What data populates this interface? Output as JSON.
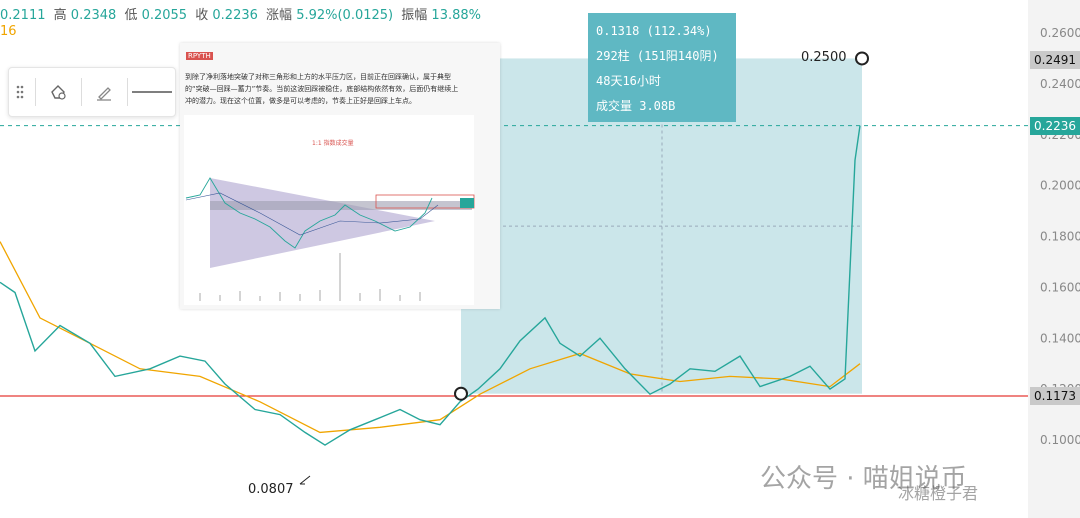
{
  "header": {
    "open_value": "0.2111",
    "high_label": "高",
    "high_value": "0.2348",
    "low_label": "低",
    "low_value": "0.2055",
    "close_label": "收",
    "close_value": "0.2236",
    "change_label": "涨幅",
    "change_value": "5.92%(0.0125)",
    "amplitude_label": "振幅",
    "amplitude_value": "13.88%",
    "ma_fragment": "16"
  },
  "toolbar": {
    "icons": [
      "drag-handle-icon",
      "lock-shape-icon",
      "pencil-icon",
      "line-style-icon"
    ]
  },
  "measure_tooltip": {
    "line1": "0.1318 (112.34%)",
    "line2": "292柱 (151阳140阴)",
    "line3": "48天16小时",
    "line4": "成交量 3.08B"
  },
  "markers": {
    "high_label": "0.2500",
    "low_label": "0.0807"
  },
  "price_tags": {
    "current": "0.2236",
    "high": "0.2491",
    "support": "0.1173"
  },
  "inset": {
    "tag": "RPYTH",
    "text_line1": "到除了净利落地突破了对称三角形和上方的水平压力区，目前正在回踩确认，属于典型",
    "text_line2": "的“突破—回踩—蓄力”节奏。当前这波回踩被稳住，底部结构依然有效，后面仍有继续上",
    "text_line3": "冲的潜力。现在这个位置，做多是可以考虑的，节奏上正好是回踩上车点。",
    "chart_caption": "1:1 指数成交量"
  },
  "watermark": {
    "main": "公众号 · 喵姐说币",
    "sub": "冰糖橙子君"
  },
  "colors": {
    "up": "#26a69a",
    "ma": "#f0a500",
    "support_line": "#e53935",
    "measure_box": "#c5e3e8",
    "tooltip_bg": "#5fb8c3",
    "axis_text": "#888888"
  },
  "chart_data": {
    "type": "line",
    "title": "",
    "xlabel": "",
    "ylabel": "",
    "ylim": [
      0.095,
      0.262
    ],
    "y_ticks": [
      0.26,
      0.24,
      0.22,
      0.2,
      0.18,
      0.16,
      0.14,
      0.12,
      0.1
    ],
    "y_tick_labels": [
      "0.26000",
      "0.24000",
      "0.22000",
      "0.20000",
      "0.18000",
      "0.16000",
      "0.14000",
      "0.12000",
      "0.10000"
    ],
    "series": [
      {
        "x": [
          0,
          15,
          35,
          60,
          90,
          115,
          150,
          180,
          205,
          225,
          255,
          280,
          305,
          325,
          350,
          375,
          400,
          420,
          440,
          460,
          478,
          500,
          520,
          545,
          560,
          580,
          600,
          625,
          650,
          670,
          690,
          715,
          740,
          760,
          790,
          810,
          830,
          845,
          855,
          860
        ],
        "values": [
          0.162,
          0.158,
          0.135,
          0.145,
          0.138,
          0.125,
          0.128,
          0.133,
          0.131,
          0.122,
          0.112,
          0.11,
          0.103,
          0.098,
          0.104,
          0.108,
          0.112,
          0.108,
          0.106,
          0.115,
          0.12,
          0.128,
          0.139,
          0.148,
          0.138,
          0.133,
          0.14,
          0.128,
          0.118,
          0.122,
          0.128,
          0.127,
          0.133,
          0.121,
          0.125,
          0.129,
          0.12,
          0.124,
          0.21,
          0.2236
        ]
      },
      {
        "x": [
          0,
          40,
          90,
          140,
          200,
          260,
          320,
          380,
          440,
          480,
          530,
          580,
          630,
          680,
          730,
          780,
          830,
          860
        ],
        "values": [
          0.178,
          0.148,
          0.138,
          0.128,
          0.125,
          0.115,
          0.103,
          0.105,
          0.108,
          0.118,
          0.128,
          0.134,
          0.126,
          0.123,
          0.125,
          0.124,
          0.121,
          0.13
        ]
      }
    ],
    "support_level": 0.1173,
    "measure": {
      "from": 0.1182,
      "to": 0.25
    },
    "annotations": [
      "0.2500",
      "0.0807"
    ],
    "grid": false
  }
}
